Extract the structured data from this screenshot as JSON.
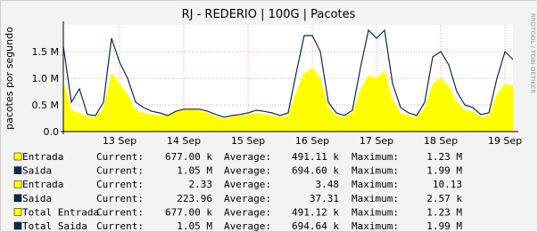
{
  "chart_data": {
    "type": "line",
    "title": "RJ - REDERIO | 100G | Pacotes",
    "y_label": "pacotes por segundo",
    "side_note": "RRDTOOL / TOBI OETIKER",
    "grid": true,
    "categories": [
      null,
      null,
      null,
      null,
      null,
      null,
      null,
      "13 Sep",
      null,
      null,
      null,
      null,
      null,
      null,
      null,
      "14 Sep",
      null,
      null,
      null,
      null,
      null,
      null,
      null,
      "15 Sep",
      null,
      null,
      null,
      null,
      null,
      null,
      null,
      "16 Sep",
      null,
      null,
      null,
      null,
      null,
      null,
      null,
      "17 Sep",
      null,
      null,
      null,
      null,
      null,
      null,
      null,
      "18 Sep",
      null,
      null,
      null,
      null,
      null,
      null,
      null,
      "19 Sep",
      null
    ],
    "ylim": [
      0,
      2000000
    ],
    "yticks": [
      {
        "value": 0,
        "label": "0.0"
      },
      {
        "value": 500000,
        "label": "0.5 M"
      },
      {
        "value": 1000000,
        "label": "1.0 M"
      },
      {
        "value": 1500000,
        "label": "1.5 M"
      }
    ],
    "series": [
      {
        "name": "Entrada",
        "style": "area",
        "color": "#ffff00",
        "values": [
          950000,
          400000,
          350000,
          280000,
          270000,
          450000,
          1100000,
          900000,
          700000,
          400000,
          350000,
          320000,
          300000,
          300000,
          380000,
          420000,
          420000,
          400000,
          350000,
          280000,
          250000,
          280000,
          300000,
          320000,
          350000,
          330000,
          300000,
          270000,
          300000,
          750000,
          1100000,
          1200000,
          1000000,
          450000,
          300000,
          270000,
          350000,
          800000,
          1050000,
          1000000,
          1150000,
          600000,
          350000,
          300000,
          270000,
          450000,
          900000,
          1000000,
          850000,
          550000,
          400000,
          380000,
          280000,
          300000,
          700000,
          900000,
          850000
        ]
      },
      {
        "name": "Saida",
        "style": "line",
        "color": "#0d2a4e",
        "values": [
          1600000,
          550000,
          800000,
          320000,
          300000,
          550000,
          1750000,
          1300000,
          1000000,
          550000,
          450000,
          380000,
          350000,
          300000,
          380000,
          420000,
          420000,
          420000,
          380000,
          320000,
          270000,
          300000,
          320000,
          350000,
          400000,
          380000,
          350000,
          300000,
          350000,
          1100000,
          1800000,
          1800000,
          1500000,
          550000,
          350000,
          300000,
          400000,
          1200000,
          1900000,
          1750000,
          1900000,
          900000,
          450000,
          350000,
          300000,
          550000,
          1400000,
          1500000,
          1250000,
          750000,
          500000,
          450000,
          320000,
          350000,
          1000000,
          1500000,
          1350000
        ]
      }
    ],
    "legend_table": {
      "labels": [
        "Current:",
        "Average:",
        "Maximum:"
      ],
      "rows": [
        {
          "name": "Entrada",
          "color": "#ffff00",
          "current": "677.00 k",
          "average": "491.11 k",
          "maximum": "1.23 M"
        },
        {
          "name": "Saida",
          "color": "#0d2a4e",
          "current": "1.05 M",
          "average": "694.60 k",
          "maximum": "1.99 M"
        },
        {
          "name": "Entrada",
          "color": "#ffff00",
          "current": "2.33",
          "average": "3.48",
          "maximum": "10.13"
        },
        {
          "name": "Saida",
          "color": "#0d2a4e",
          "current": "223.96",
          "average": "37.31",
          "maximum": "2.57 k"
        },
        {
          "name": "Total Entrada",
          "color": "#ffff00",
          "current": "677.00 k",
          "average": "491.12 k",
          "maximum": "1.23 M"
        },
        {
          "name": "Total Saida",
          "color": "#0d2a4e",
          "current": "1.05 M",
          "average": "694.64 k",
          "maximum": "1.99 M"
        }
      ]
    }
  }
}
